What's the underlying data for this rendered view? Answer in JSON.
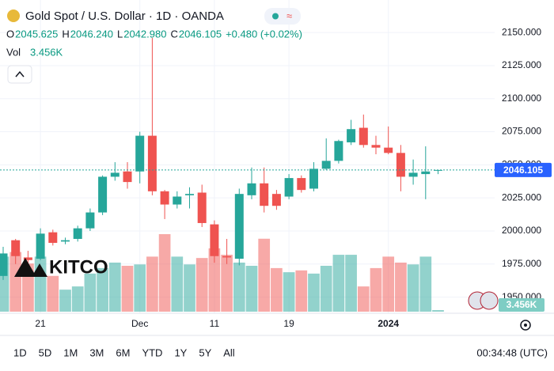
{
  "header": {
    "title": "Gold Spot / U.S. Dollar · 1D · OANDA",
    "ohlc": [
      {
        "label": "O",
        "value": "2045.625"
      },
      {
        "label": "H",
        "value": "2046.240"
      },
      {
        "label": "L",
        "value": "2042.980"
      },
      {
        "label": "C",
        "value": "2046.105"
      }
    ],
    "change": "+0.480 (+0.02%)",
    "vol_label": "Vol"
  },
  "chart_data": {
    "type": "candlestick",
    "categories": [
      null,
      null,
      null,
      "21",
      null,
      null,
      null,
      null,
      null,
      null,
      null,
      "Dec",
      null,
      null,
      null,
      null,
      null,
      "11",
      null,
      null,
      null,
      null,
      null,
      "19",
      null,
      null,
      null,
      null,
      null,
      null,
      null,
      "2024",
      null,
      null,
      null,
      null
    ],
    "open": [
      1966,
      1993,
      1980,
      1979,
      1999,
      1992,
      1994,
      2002,
      2014,
      2041,
      2045,
      2045,
      2072,
      2030,
      2020,
      2027,
      2029,
      2005,
      1981,
      1979,
      2027,
      2036,
      2028,
      2026,
      2040,
      2032,
      2047,
      2053,
      2067,
      2078,
      2065,
      2063,
      2059,
      2041,
      2043,
      2045.625
    ],
    "high": [
      1988,
      1994,
      1985,
      2002,
      2001,
      1995,
      2004,
      2017,
      2042,
      2052,
      2052,
      2075,
      2146,
      2031,
      2030,
      2033,
      2035,
      2008,
      1994,
      2032,
      2048,
      2048,
      2031,
      2043,
      2042,
      2052,
      2070,
      2069,
      2084,
      2088,
      2072,
      2079,
      2065,
      2054,
      2064,
      2046.24
    ],
    "low": [
      1963,
      1975,
      1975,
      1978,
      1989,
      1990,
      1992,
      2000,
      2012,
      2038,
      2032,
      2036,
      2027,
      2009,
      2017,
      2017,
      2003,
      1976,
      1975,
      1974,
      2024,
      2014,
      2016,
      2024,
      2029,
      2030,
      2046,
      2051,
      2065,
      2063,
      2058,
      2058,
      2030,
      2035,
      2024,
      2042.98
    ],
    "close": [
      1983,
      1981,
      1978,
      1998,
      1991,
      1993,
      2002,
      2014,
      2041,
      2044,
      2037,
      2072,
      2030,
      2020,
      2026,
      2028,
      2006,
      1981,
      1980,
      2028,
      2036,
      2019,
      2019,
      2040,
      2031,
      2047,
      2053,
      2068,
      2077,
      2065,
      2063,
      2059,
      2041,
      2044,
      2045,
      2046.105
    ],
    "volume": {
      "values": [
        120,
        130,
        105,
        120,
        78,
        48,
        55,
        83,
        95,
        107,
        100,
        103,
        120,
        169,
        120,
        103,
        117,
        138,
        124,
        107,
        100,
        159,
        95,
        86,
        90,
        83,
        100,
        124,
        124,
        55,
        95,
        120,
        107,
        103,
        120,
        3.456
      ],
      "last_label": "3.456K"
    },
    "ylim": [
      1937.8,
      2174.6
    ],
    "yticks": [
      {
        "value": 1950,
        "label": "1950.000"
      },
      {
        "value": 1975,
        "label": "1975.000"
      },
      {
        "value": 2000,
        "label": "2000.000"
      },
      {
        "value": 2025,
        "label": "2025.000"
      },
      {
        "value": 2050,
        "label": "2050.000"
      },
      {
        "value": 2075,
        "label": "2075.000"
      },
      {
        "value": 2100,
        "label": "2100.000"
      },
      {
        "value": 2125,
        "label": "2125.000"
      },
      {
        "value": 2150,
        "label": "2150.000"
      }
    ],
    "grid": true,
    "up_color": "#26a69a",
    "down_color": "#ef5350",
    "watermark": "KITCO"
  },
  "toolbar": {
    "ranges": [
      "1D",
      "5D",
      "1M",
      "3M",
      "6M",
      "YTD",
      "1Y",
      "5Y",
      "All"
    ],
    "clock": "00:34:48 (UTC)"
  }
}
